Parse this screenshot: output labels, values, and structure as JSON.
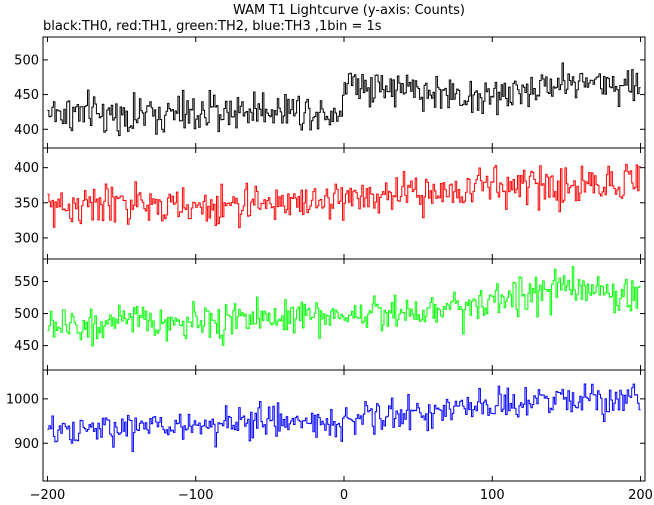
{
  "chart_data": {
    "type": "line",
    "title": "WAM T1 Lightcurve (y-axis: Counts)",
    "subtitle": "black:TH0, red:TH1, green:TH2, blue:TH3 ,1bin = 1s",
    "xlabel": "",
    "ylabel": "",
    "xlim": [
      -203,
      203
    ],
    "x_ticks": [
      -200,
      -100,
      0,
      100,
      200
    ],
    "grid": false,
    "legend": "none",
    "sampling": {
      "x_start": -200,
      "x_end": 200,
      "step": 1
    },
    "panels": [
      {
        "series": "TH0",
        "color": "#000000",
        "ylim": [
          373,
          533
        ],
        "y_ticks": [
          400,
          450,
          500
        ],
        "noise": 22,
        "trend": [
          [
            -200,
            425
          ],
          [
            -150,
            420
          ],
          [
            -100,
            422
          ],
          [
            -50,
            430
          ],
          [
            -2,
            425
          ],
          [
            0,
            470
          ],
          [
            50,
            455
          ],
          [
            100,
            445
          ],
          [
            150,
            470
          ],
          [
            200,
            462
          ]
        ]
      },
      {
        "series": "TH1",
        "color": "#ff0000",
        "ylim": [
          270,
          428
        ],
        "y_ticks": [
          300,
          350,
          400
        ],
        "noise": 22,
        "trend": [
          [
            -200,
            345
          ],
          [
            -150,
            348
          ],
          [
            -100,
            342
          ],
          [
            -50,
            350
          ],
          [
            0,
            355
          ],
          [
            50,
            362
          ],
          [
            100,
            375
          ],
          [
            150,
            372
          ],
          [
            200,
            385
          ]
        ]
      },
      {
        "series": "TH2",
        "color": "#00ff00",
        "ylim": [
          412,
          585
        ],
        "y_ticks": [
          450,
          500,
          550
        ],
        "noise": 22,
        "trend": [
          [
            -200,
            480
          ],
          [
            -150,
            485
          ],
          [
            -100,
            485
          ],
          [
            -50,
            495
          ],
          [
            0,
            498
          ],
          [
            50,
            505
          ],
          [
            100,
            520
          ],
          [
            150,
            540
          ],
          [
            200,
            525
          ]
        ]
      },
      {
        "series": "TH3",
        "color": "#0000ff",
        "ylim": [
          815,
          1065
        ],
        "y_ticks": [
          900,
          1000
        ],
        "noise": 30,
        "trend": [
          [
            -200,
            920
          ],
          [
            -150,
            935
          ],
          [
            -100,
            940
          ],
          [
            -50,
            950
          ],
          [
            0,
            950
          ],
          [
            50,
            970
          ],
          [
            100,
            980
          ],
          [
            150,
            1000
          ],
          [
            200,
            1005
          ]
        ]
      }
    ]
  }
}
